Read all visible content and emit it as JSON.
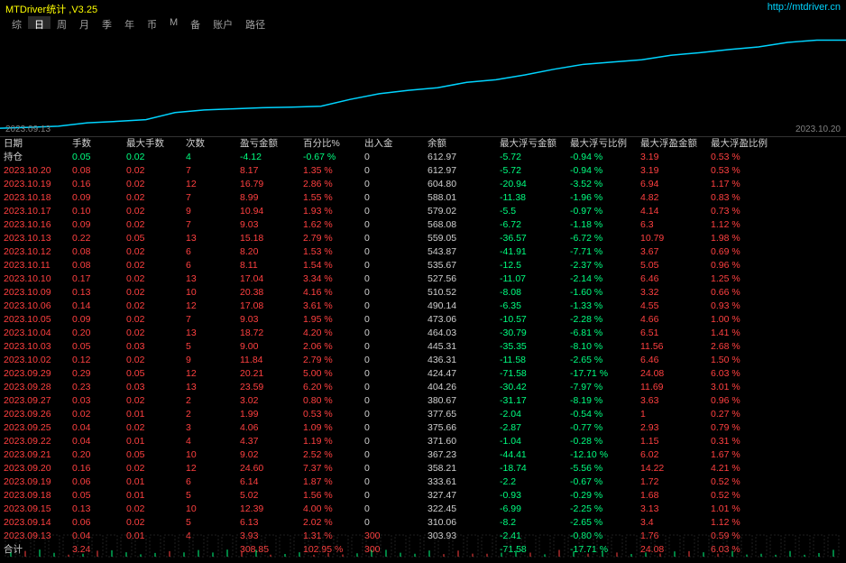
{
  "title": "MTDriver统计 ,V3.25",
  "url": "http://mtdriver.cn",
  "tabs": [
    "综",
    "日",
    "周",
    "月",
    "季",
    "年",
    "币",
    "M",
    "备",
    "账户",
    "路径"
  ],
  "active_tab": 1,
  "chart": {
    "type": "line",
    "xlabel_left": "2023.09.13",
    "xlabel_right": "2023.10.20",
    "line_color": "#00d4ff",
    "background_color": "#000000",
    "points": [
      [
        0,
        303
      ],
      [
        30,
        306
      ],
      [
        60,
        310
      ],
      [
        90,
        322
      ],
      [
        120,
        327
      ],
      [
        150,
        333
      ],
      [
        180,
        358
      ],
      [
        210,
        367
      ],
      [
        240,
        371
      ],
      [
        270,
        375
      ],
      [
        300,
        377
      ],
      [
        330,
        380
      ],
      [
        360,
        404
      ],
      [
        390,
        424
      ],
      [
        420,
        436
      ],
      [
        450,
        445
      ],
      [
        480,
        464
      ],
      [
        510,
        473
      ],
      [
        540,
        490
      ],
      [
        570,
        510
      ],
      [
        600,
        527
      ],
      [
        630,
        535
      ],
      [
        660,
        543
      ],
      [
        690,
        559
      ],
      [
        720,
        568
      ],
      [
        750,
        579
      ],
      [
        780,
        588
      ],
      [
        810,
        604
      ],
      [
        840,
        612
      ],
      [
        870,
        612
      ]
    ],
    "ylim": [
      300,
      620
    ],
    "xlim": [
      0,
      870
    ]
  },
  "headers": [
    "日期",
    "手数",
    "最大手数",
    "次数",
    "盈亏金额",
    "百分比%",
    "出入金",
    "余额",
    "最大浮亏金额",
    "最大浮亏比例",
    "最大浮盈金额",
    "最大浮盈比例"
  ],
  "first_row": {
    "date": "持仓",
    "shoushu": "0.05",
    "maxshoushu": "0.02",
    "cishu": "4",
    "yingkuijine": "-4.12",
    "baifenbi": "-0.67 %",
    "churujin": "0",
    "yue": "612.97",
    "maxfukjine": "-5.72",
    "maxfukbili": "-0.94 %",
    "maxfuyjine": "3.19",
    "maxfuybili": "0.53 %",
    "color_ss": "green",
    "color_yk": "green",
    "color_bf": "green"
  },
  "rows": [
    {
      "date": "2023.10.20",
      "shoushu": "0.08",
      "maxshoushu": "0.02",
      "cishu": "7",
      "yingkuijine": "8.17",
      "baifenbi": "1.35 %",
      "churujin": "0",
      "yue": "612.97",
      "maxfukjine": "-5.72",
      "maxfukbili": "-0.94 %",
      "maxfuyjine": "3.19",
      "maxfuybili": "0.53 %"
    },
    {
      "date": "2023.10.19",
      "shoushu": "0.16",
      "maxshoushu": "0.02",
      "cishu": "12",
      "yingkuijine": "16.79",
      "baifenbi": "2.86 %",
      "churujin": "0",
      "yue": "604.80",
      "maxfukjine": "-20.94",
      "maxfukbili": "-3.52 %",
      "maxfuyjine": "6.94",
      "maxfuybili": "1.17 %"
    },
    {
      "date": "2023.10.18",
      "shoushu": "0.09",
      "maxshoushu": "0.02",
      "cishu": "7",
      "yingkuijine": "8.99",
      "baifenbi": "1.55 %",
      "churujin": "0",
      "yue": "588.01",
      "maxfukjine": "-11.38",
      "maxfukbili": "-1.96 %",
      "maxfuyjine": "4.82",
      "maxfuybili": "0.83 %"
    },
    {
      "date": "2023.10.17",
      "shoushu": "0.10",
      "maxshoushu": "0.02",
      "cishu": "9",
      "yingkuijine": "10.94",
      "baifenbi": "1.93 %",
      "churujin": "0",
      "yue": "579.02",
      "maxfukjine": "-5.5",
      "maxfukbili": "-0.97 %",
      "maxfuyjine": "4.14",
      "maxfuybili": "0.73 %"
    },
    {
      "date": "2023.10.16",
      "shoushu": "0.09",
      "maxshoushu": "0.02",
      "cishu": "7",
      "yingkuijine": "9.03",
      "baifenbi": "1.62 %",
      "churujin": "0",
      "yue": "568.08",
      "maxfukjine": "-6.72",
      "maxfukbili": "-1.18 %",
      "maxfuyjine": "6.3",
      "maxfuybili": "1.12 %"
    },
    {
      "date": "2023.10.13",
      "shoushu": "0.22",
      "maxshoushu": "0.05",
      "cishu": "13",
      "yingkuijine": "15.18",
      "baifenbi": "2.79 %",
      "churujin": "0",
      "yue": "559.05",
      "maxfukjine": "-36.57",
      "maxfukbili": "-6.72 %",
      "maxfuyjine": "10.79",
      "maxfuybili": "1.98 %"
    },
    {
      "date": "2023.10.12",
      "shoushu": "0.08",
      "maxshoushu": "0.02",
      "cishu": "6",
      "yingkuijine": "8.20",
      "baifenbi": "1.53 %",
      "churujin": "0",
      "yue": "543.87",
      "maxfukjine": "-41.91",
      "maxfukbili": "-7.71 %",
      "maxfuyjine": "3.67",
      "maxfuybili": "0.69 %"
    },
    {
      "date": "2023.10.11",
      "shoushu": "0.08",
      "maxshoushu": "0.02",
      "cishu": "6",
      "yingkuijine": "8.11",
      "baifenbi": "1.54 %",
      "churujin": "0",
      "yue": "535.67",
      "maxfukjine": "-12.5",
      "maxfukbili": "-2.37 %",
      "maxfuyjine": "5.05",
      "maxfuybili": "0.96 %"
    },
    {
      "date": "2023.10.10",
      "shoushu": "0.17",
      "maxshoushu": "0.02",
      "cishu": "13",
      "yingkuijine": "17.04",
      "baifenbi": "3.34 %",
      "churujin": "0",
      "yue": "527.56",
      "maxfukjine": "-11.07",
      "maxfukbili": "-2.14 %",
      "maxfuyjine": "6.46",
      "maxfuybili": "1.25 %"
    },
    {
      "date": "2023.10.09",
      "shoushu": "0.13",
      "maxshoushu": "0.02",
      "cishu": "10",
      "yingkuijine": "20.38",
      "baifenbi": "4.16 %",
      "churujin": "0",
      "yue": "510.52",
      "maxfukjine": "-8.08",
      "maxfukbili": "-1.60 %",
      "maxfuyjine": "3.32",
      "maxfuybili": "0.66 %"
    },
    {
      "date": "2023.10.06",
      "shoushu": "0.14",
      "maxshoushu": "0.02",
      "cishu": "12",
      "yingkuijine": "17.08",
      "baifenbi": "3.61 %",
      "churujin": "0",
      "yue": "490.14",
      "maxfukjine": "-6.35",
      "maxfukbili": "-1.33 %",
      "maxfuyjine": "4.55",
      "maxfuybili": "0.93 %"
    },
    {
      "date": "2023.10.05",
      "shoushu": "0.09",
      "maxshoushu": "0.02",
      "cishu": "7",
      "yingkuijine": "9.03",
      "baifenbi": "1.95 %",
      "churujin": "0",
      "yue": "473.06",
      "maxfukjine": "-10.57",
      "maxfukbili": "-2.28 %",
      "maxfuyjine": "4.66",
      "maxfuybili": "1.00 %"
    },
    {
      "date": "2023.10.04",
      "shoushu": "0.20",
      "maxshoushu": "0.02",
      "cishu": "13",
      "yingkuijine": "18.72",
      "baifenbi": "4.20 %",
      "churujin": "0",
      "yue": "464.03",
      "maxfukjine": "-30.79",
      "maxfukbili": "-6.81 %",
      "maxfuyjine": "6.51",
      "maxfuybili": "1.41 %"
    },
    {
      "date": "2023.10.03",
      "shoushu": "0.05",
      "maxshoushu": "0.03",
      "cishu": "5",
      "yingkuijine": "9.00",
      "baifenbi": "2.06 %",
      "churujin": "0",
      "yue": "445.31",
      "maxfukjine": "-35.35",
      "maxfukbili": "-8.10 %",
      "maxfuyjine": "11.56",
      "maxfuybili": "2.68 %"
    },
    {
      "date": "2023.10.02",
      "shoushu": "0.12",
      "maxshoushu": "0.02",
      "cishu": "9",
      "yingkuijine": "11.84",
      "baifenbi": "2.79 %",
      "churujin": "0",
      "yue": "436.31",
      "maxfukjine": "-11.58",
      "maxfukbili": "-2.65 %",
      "maxfuyjine": "6.46",
      "maxfuybili": "1.50 %"
    },
    {
      "date": "2023.09.29",
      "shoushu": "0.29",
      "maxshoushu": "0.05",
      "cishu": "12",
      "yingkuijine": "20.21",
      "baifenbi": "5.00 %",
      "churujin": "0",
      "yue": "424.47",
      "maxfukjine": "-71.58",
      "maxfukbili": "-17.71 %",
      "maxfuyjine": "24.08",
      "maxfuybili": "6.03 %"
    },
    {
      "date": "2023.09.28",
      "shoushu": "0.23",
      "maxshoushu": "0.03",
      "cishu": "13",
      "yingkuijine": "23.59",
      "baifenbi": "6.20 %",
      "churujin": "0",
      "yue": "404.26",
      "maxfukjine": "-30.42",
      "maxfukbili": "-7.97 %",
      "maxfuyjine": "11.69",
      "maxfuybili": "3.01 %"
    },
    {
      "date": "2023.09.27",
      "shoushu": "0.03",
      "maxshoushu": "0.02",
      "cishu": "2",
      "yingkuijine": "3.02",
      "baifenbi": "0.80 %",
      "churujin": "0",
      "yue": "380.67",
      "maxfukjine": "-31.17",
      "maxfukbili": "-8.19 %",
      "maxfuyjine": "3.63",
      "maxfuybili": "0.96 %"
    },
    {
      "date": "2023.09.26",
      "shoushu": "0.02",
      "maxshoushu": "0.01",
      "cishu": "2",
      "yingkuijine": "1.99",
      "baifenbi": "0.53 %",
      "churujin": "0",
      "yue": "377.65",
      "maxfukjine": "-2.04",
      "maxfukbili": "-0.54 %",
      "maxfuyjine": "1",
      "maxfuybili": "0.27 %"
    },
    {
      "date": "2023.09.25",
      "shoushu": "0.04",
      "maxshoushu": "0.02",
      "cishu": "3",
      "yingkuijine": "4.06",
      "baifenbi": "1.09 %",
      "churujin": "0",
      "yue": "375.66",
      "maxfukjine": "-2.87",
      "maxfukbili": "-0.77 %",
      "maxfuyjine": "2.93",
      "maxfuybili": "0.79 %"
    },
    {
      "date": "2023.09.22",
      "shoushu": "0.04",
      "maxshoushu": "0.01",
      "cishu": "4",
      "yingkuijine": "4.37",
      "baifenbi": "1.19 %",
      "churujin": "0",
      "yue": "371.60",
      "maxfukjine": "-1.04",
      "maxfukbili": "-0.28 %",
      "maxfuyjine": "1.15",
      "maxfuybili": "0.31 %"
    },
    {
      "date": "2023.09.21",
      "shoushu": "0.20",
      "maxshoushu": "0.05",
      "cishu": "10",
      "yingkuijine": "9.02",
      "baifenbi": "2.52 %",
      "churujin": "0",
      "yue": "367.23",
      "maxfukjine": "-44.41",
      "maxfukbili": "-12.10 %",
      "maxfuyjine": "6.02",
      "maxfuybili": "1.67 %"
    },
    {
      "date": "2023.09.20",
      "shoushu": "0.16",
      "maxshoushu": "0.02",
      "cishu": "12",
      "yingkuijine": "24.60",
      "baifenbi": "7.37 %",
      "churujin": "0",
      "yue": "358.21",
      "maxfukjine": "-18.74",
      "maxfukbili": "-5.56 %",
      "maxfuyjine": "14.22",
      "maxfuybili": "4.21 %"
    },
    {
      "date": "2023.09.19",
      "shoushu": "0.06",
      "maxshoushu": "0.01",
      "cishu": "6",
      "yingkuijine": "6.14",
      "baifenbi": "1.87 %",
      "churujin": "0",
      "yue": "333.61",
      "maxfukjine": "-2.2",
      "maxfukbili": "-0.67 %",
      "maxfuyjine": "1.72",
      "maxfuybili": "0.52 %"
    },
    {
      "date": "2023.09.18",
      "shoushu": "0.05",
      "maxshoushu": "0.01",
      "cishu": "5",
      "yingkuijine": "5.02",
      "baifenbi": "1.56 %",
      "churujin": "0",
      "yue": "327.47",
      "maxfukjine": "-0.93",
      "maxfukbili": "-0.29 %",
      "maxfuyjine": "1.68",
      "maxfuybili": "0.52 %"
    },
    {
      "date": "2023.09.15",
      "shoushu": "0.13",
      "maxshoushu": "0.02",
      "cishu": "10",
      "yingkuijine": "12.39",
      "baifenbi": "4.00 %",
      "churujin": "0",
      "yue": "322.45",
      "maxfukjine": "-6.99",
      "maxfukbili": "-2.25 %",
      "maxfuyjine": "3.13",
      "maxfuybili": "1.01 %"
    },
    {
      "date": "2023.09.14",
      "shoushu": "0.06",
      "maxshoushu": "0.02",
      "cishu": "5",
      "yingkuijine": "6.13",
      "baifenbi": "2.02 %",
      "churujin": "0",
      "yue": "310.06",
      "maxfukjine": "-8.2",
      "maxfukbili": "-2.65 %",
      "maxfuyjine": "3.4",
      "maxfuybili": "1.12 %"
    },
    {
      "date": "2023.09.13",
      "shoushu": "0.04",
      "maxshoushu": "0.01",
      "cishu": "4",
      "yingkuijine": "3.93",
      "baifenbi": "1.31 %",
      "churujin": "300",
      "yue": "303.93",
      "maxfukjine": "-2.41",
      "maxfukbili": "-0.80 %",
      "maxfuyjine": "1.76",
      "maxfuybili": "0.59 %"
    }
  ],
  "total": {
    "date": "合计",
    "shoushu": "3.24",
    "maxshoushu": "",
    "cishu": "",
    "yingkuijine": "308.85",
    "baifenbi": "102.95 %",
    "churujin": "300",
    "yue": "",
    "maxfukjine": "-71.58",
    "maxfukbili": "-17.71 %",
    "maxfuyjine": "24.08",
    "maxfuybili": "6.03 %"
  },
  "indicator": {
    "grid_color": "#404040",
    "bar_colors": {
      "up": "#00ff80",
      "down": "#ff4040"
    }
  }
}
